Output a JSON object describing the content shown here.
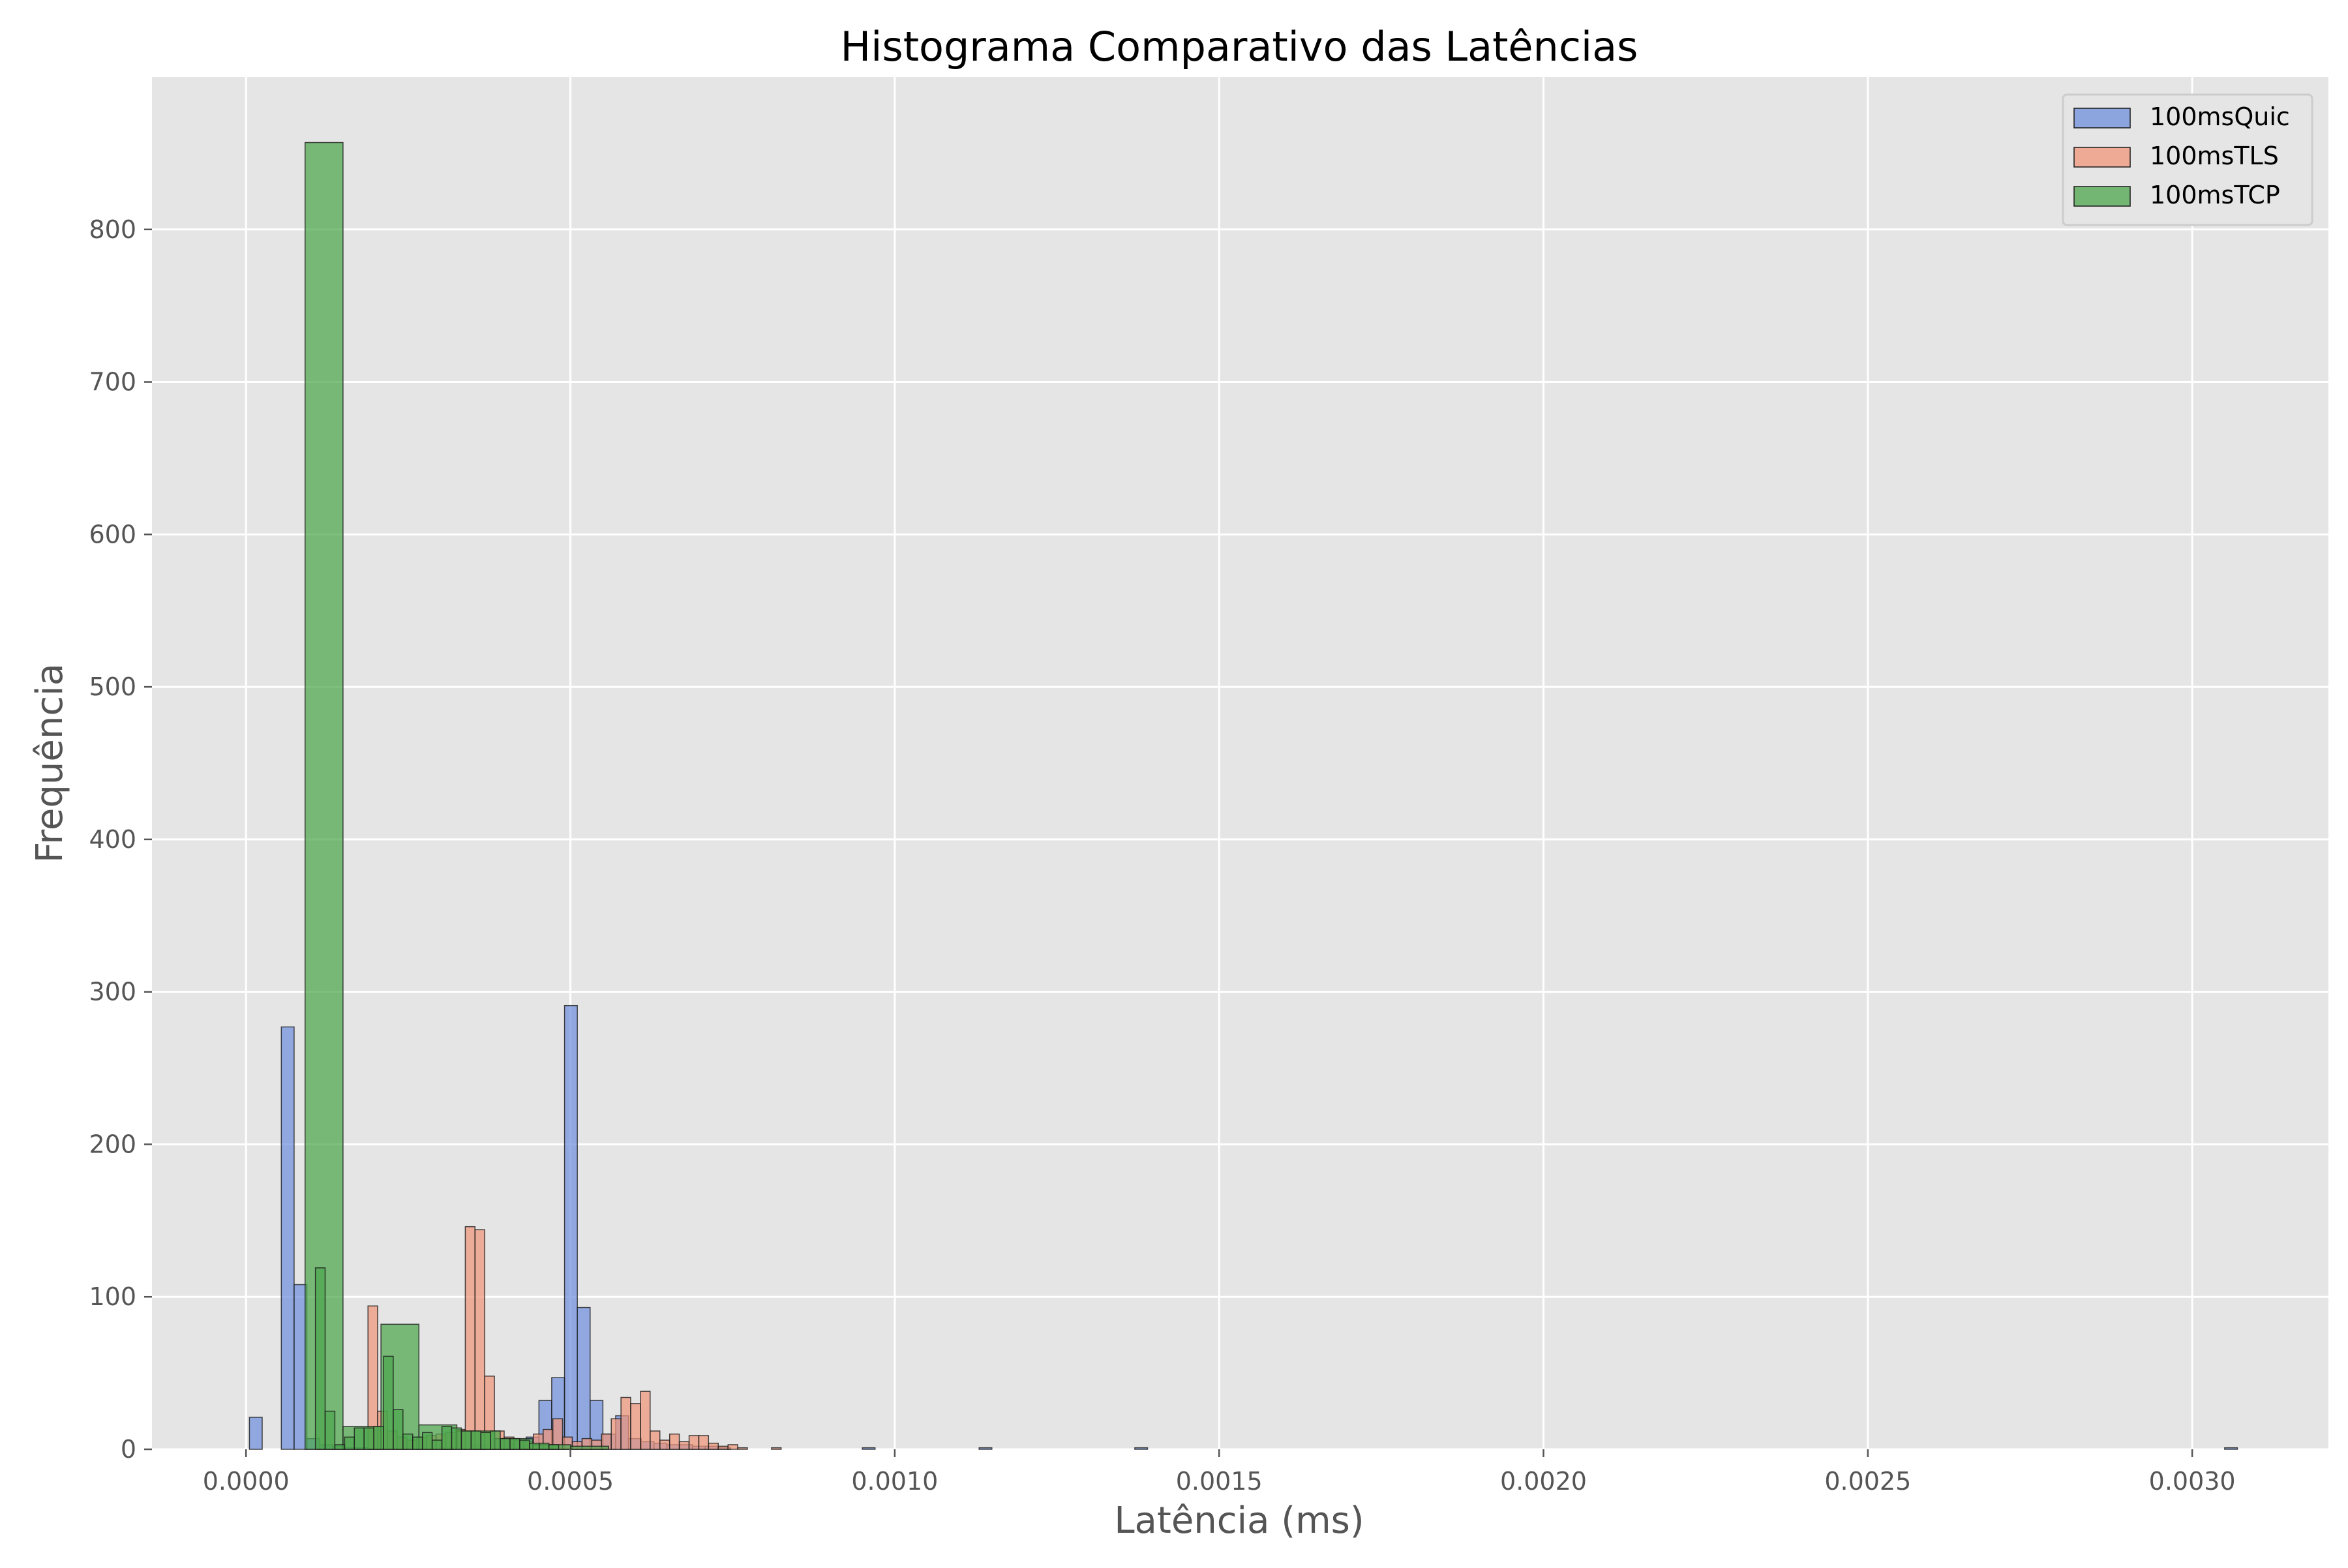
{
  "chart_data": {
    "type": "bar",
    "title": "Histograma Comparativo das Latências",
    "xlabel": "Latência (ms)",
    "ylabel": "Frequência",
    "xlim": [
      -0.000145,
      0.00321
    ],
    "ylim": [
      0,
      900
    ],
    "xticks": [
      0.0,
      0.0005,
      0.001,
      0.0015,
      0.002,
      0.0025,
      0.003
    ],
    "xtick_labels": [
      "0.0000",
      "0.0005",
      "0.0010",
      "0.0015",
      "0.0020",
      "0.0025",
      "0.0030"
    ],
    "yticks": [
      0,
      100,
      200,
      300,
      400,
      500,
      600,
      700,
      800
    ],
    "ytick_labels": [
      "0",
      "100",
      "200",
      "300",
      "400",
      "500",
      "600",
      "700",
      "800"
    ],
    "grid": true,
    "legend_position": "top-right",
    "series": [
      {
        "name": "100msQuic",
        "color": "#6f8fdc",
        "bin_width": 1.97e-05,
        "bins": [
          [
            5.2e-06,
            21
          ],
          [
            2.49e-05,
            0
          ],
          [
            4.46e-05,
            0
          ],
          [
            5.44e-05,
            277
          ],
          [
            7.41e-05,
            108
          ],
          [
            9.38e-05,
            7
          ],
          [
            0.0001136,
            3
          ],
          [
            0.0001333,
            2
          ],
          [
            0.000153,
            1
          ],
          [
            0.0001727,
            1
          ],
          [
            0.0003,
            1
          ],
          [
            0.00035,
            3
          ],
          [
            0.0003924,
            5
          ],
          [
            0.0004121,
            6
          ],
          [
            0.0004318,
            8
          ],
          [
            0.0004515,
            32
          ],
          [
            0.0004712,
            47
          ],
          [
            0.000491,
            291
          ],
          [
            0.0005107,
            93
          ],
          [
            0.0005304,
            32
          ],
          [
            0.0005501,
            10
          ],
          [
            0.0005698,
            22
          ],
          [
            0.0005895,
            7
          ],
          [
            0.0006092,
            5
          ],
          [
            0.000629,
            4
          ],
          [
            0.0006487,
            3
          ],
          [
            0.0006684,
            3
          ],
          [
            0.0006881,
            2
          ],
          [
            0.0007078,
            2
          ],
          [
            0.0007275,
            1
          ],
          [
            0.00095,
            1
          ],
          [
            0.00113,
            1
          ],
          [
            0.00137,
            1
          ],
          [
            0.00305,
            1
          ]
        ]
      },
      {
        "name": "100msTLS",
        "color": "#f0957a",
        "bin_width": 1.49e-05,
        "bins": [
          [
            0.000188,
            94
          ],
          [
            0.000203,
            25
          ],
          [
            0.000218,
            12
          ],
          [
            0.000233,
            8
          ],
          [
            0.000248,
            6
          ],
          [
            0.000263,
            8
          ],
          [
            0.000278,
            9
          ],
          [
            0.000293,
            10
          ],
          [
            0.000308,
            11
          ],
          [
            0.000323,
            13
          ],
          [
            0.000338,
            146
          ],
          [
            0.000353,
            144
          ],
          [
            0.000368,
            48
          ],
          [
            0.000383,
            12
          ],
          [
            0.000398,
            8
          ],
          [
            0.000413,
            6
          ],
          [
            0.000428,
            5
          ],
          [
            0.000443,
            10
          ],
          [
            0.000458,
            13
          ],
          [
            0.000473,
            20
          ],
          [
            0.000488,
            8
          ],
          [
            0.000503,
            5
          ],
          [
            0.000518,
            7
          ],
          [
            0.000533,
            6
          ],
          [
            0.000548,
            10
          ],
          [
            0.000563,
            20
          ],
          [
            0.000578,
            34
          ],
          [
            0.000593,
            30
          ],
          [
            0.000608,
            38
          ],
          [
            0.000623,
            12
          ],
          [
            0.000638,
            6
          ],
          [
            0.000653,
            10
          ],
          [
            0.000668,
            5
          ],
          [
            0.000683,
            9
          ],
          [
            0.000698,
            9
          ],
          [
            0.000713,
            4
          ],
          [
            0.000728,
            2
          ],
          [
            0.000743,
            3
          ],
          [
            0.000758,
            1
          ],
          [
            0.00081,
            1
          ]
        ]
      },
      {
        "name": "100msTCP",
        "color": "#4ca64c",
        "bin_width": 5.85e-05,
        "bins": [
          [
            9.1e-05,
            857
          ],
          [
            0.0001495,
            15
          ],
          [
            0.000208,
            82
          ],
          [
            0.0002665,
            16
          ],
          [
            0.000325,
            12
          ],
          [
            0.0003835,
            7
          ],
          [
            0.000442,
            3
          ],
          [
            0.0005005,
            2
          ]
        ],
        "narrow_bin_width": 1.49e-05,
        "narrow_bins": [
          [
            0.000107,
            119
          ],
          [
            0.000122,
            25
          ],
          [
            0.000137,
            3
          ],
          [
            0.000152,
            8
          ],
          [
            0.000167,
            14
          ],
          [
            0.000182,
            14
          ],
          [
            0.000197,
            15
          ],
          [
            0.000212,
            61
          ],
          [
            0.000227,
            26
          ],
          [
            0.000242,
            10
          ],
          [
            0.000257,
            8
          ],
          [
            0.000272,
            11
          ],
          [
            0.000287,
            6
          ],
          [
            0.000302,
            15
          ],
          [
            0.000317,
            14
          ],
          [
            0.000332,
            12
          ],
          [
            0.000347,
            12
          ],
          [
            0.000362,
            11
          ],
          [
            0.000377,
            12
          ],
          [
            0.000392,
            7
          ],
          [
            0.000407,
            7
          ],
          [
            0.000422,
            6
          ],
          [
            0.000437,
            4
          ],
          [
            0.000452,
            4
          ],
          [
            0.000467,
            3
          ]
        ]
      }
    ]
  }
}
